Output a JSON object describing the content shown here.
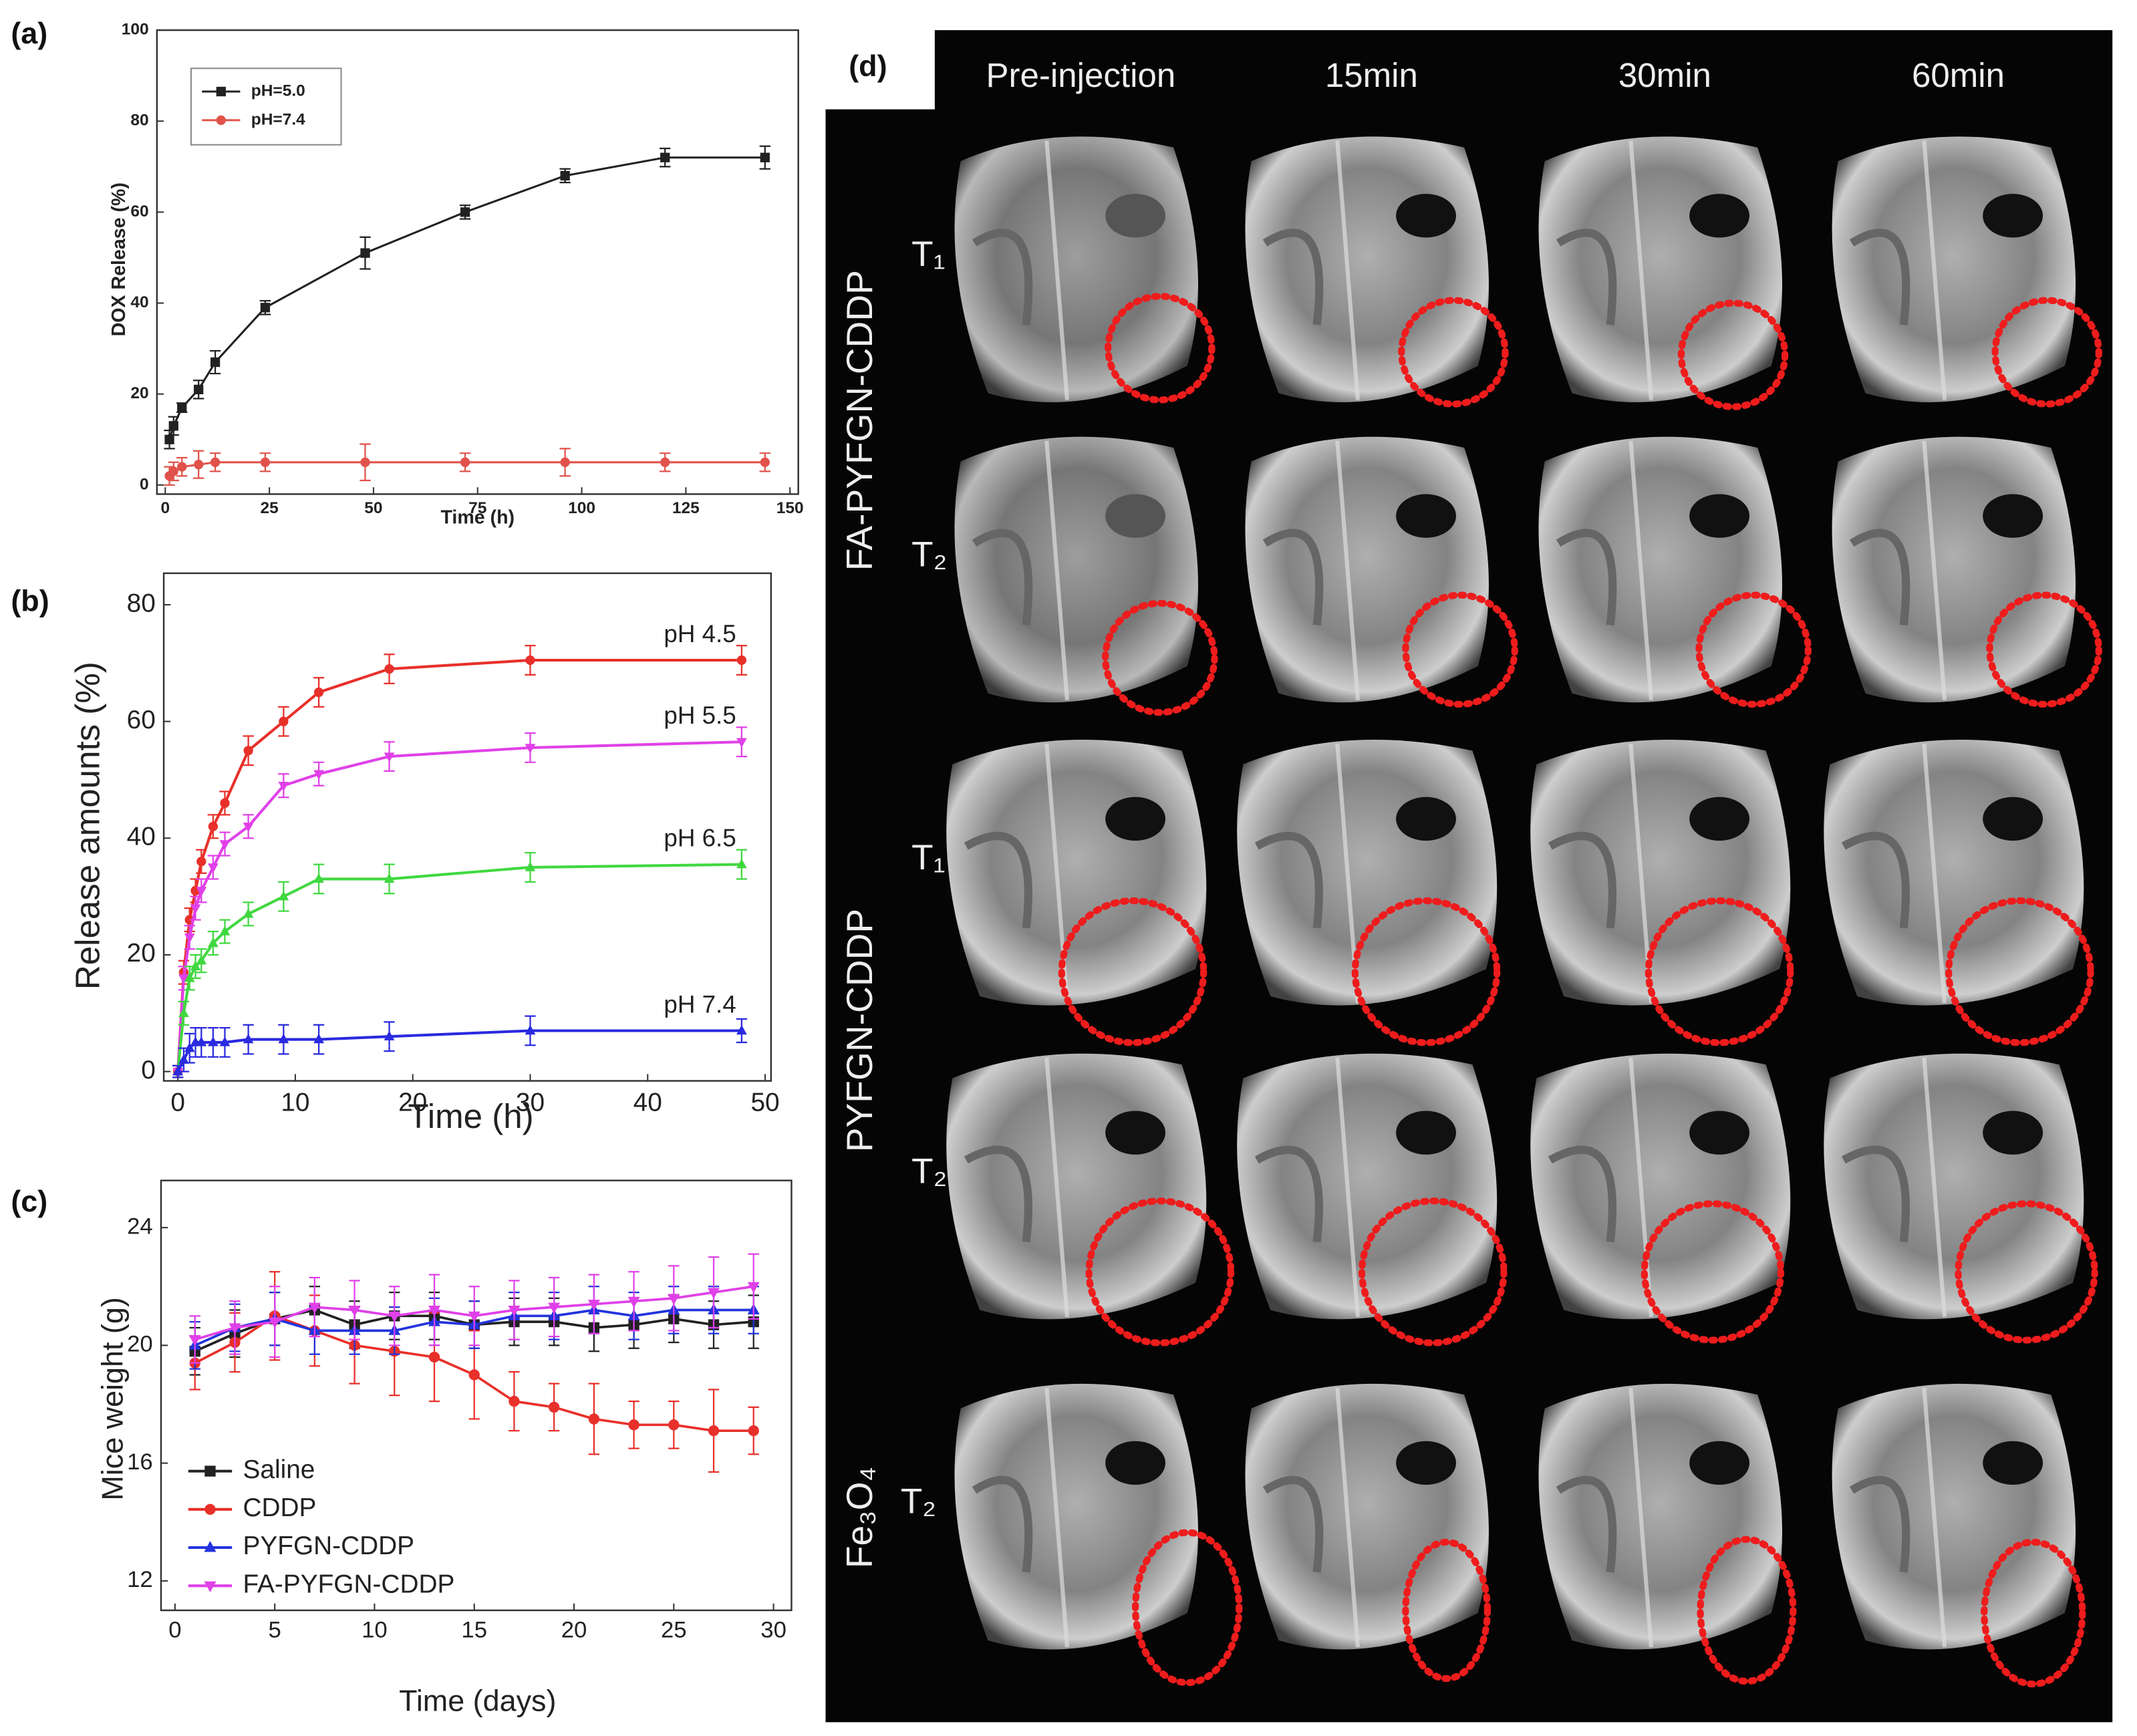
{
  "chart_data": [
    {
      "type": "line",
      "panel_label": "(a)",
      "x_label": "Time (h)",
      "y_label": "DOX Release (%)",
      "xlim": [
        -2,
        152
      ],
      "ylim": [
        -2,
        100
      ],
      "xticks": [
        0,
        25,
        50,
        75,
        100,
        125,
        150
      ],
      "yticks": [
        0,
        20,
        40,
        60,
        80,
        100
      ],
      "legend": "upper left",
      "series": [
        {
          "name": "pH=5.0",
          "color": "#222222",
          "marker": "square",
          "x": [
            1,
            2,
            4,
            8,
            12,
            24,
            48,
            72,
            96,
            120,
            144
          ],
          "values": [
            10,
            13,
            17,
            21,
            27,
            39,
            51,
            60,
            68,
            72,
            72
          ],
          "errors": [
            2,
            2,
            1,
            2,
            2.5,
            1.5,
            3.5,
            1.5,
            1.5,
            2,
            2.5
          ]
        },
        {
          "name": "pH=7.4",
          "color": "#e0524a",
          "marker": "circle",
          "x": [
            1,
            2,
            4,
            8,
            12,
            24,
            48,
            72,
            96,
            120,
            144
          ],
          "values": [
            2,
            3,
            4,
            4.5,
            5,
            5,
            5,
            5,
            5,
            5,
            5
          ],
          "errors": [
            2,
            2,
            2,
            3,
            2,
            2,
            4,
            2,
            3,
            2,
            2
          ]
        }
      ]
    },
    {
      "type": "line",
      "panel_label": "(b)",
      "x_label": "Time (h)",
      "y_label": "Release amounts (%)",
      "xlim": [
        -1.2,
        50.5
      ],
      "ylim": [
        -1.6,
        85.4
      ],
      "xticks": [
        0,
        10,
        20,
        30,
        40,
        50
      ],
      "yticks": [
        0,
        20,
        40,
        60,
        80
      ],
      "legend": "direct",
      "series": [
        {
          "name": "pH 4.5",
          "color": "#e8302a",
          "marker": "circle",
          "x": [
            0,
            0.5,
            1,
            1.5,
            2,
            3,
            4,
            6,
            9,
            12,
            18,
            30,
            48
          ],
          "values": [
            0,
            17,
            26,
            31,
            36,
            42,
            46,
            55,
            60,
            65,
            69,
            70.5,
            70.5
          ],
          "errors": [
            1,
            2,
            2,
            2,
            2,
            2,
            2,
            2.5,
            2.5,
            2.5,
            2.5,
            2.5,
            2.5
          ]
        },
        {
          "name": "pH 5.5",
          "color": "#e040e8",
          "marker": "triangle-down",
          "x": [
            0,
            0.5,
            1,
            1.5,
            2,
            3,
            4,
            6,
            9,
            12,
            18,
            30,
            48
          ],
          "values": [
            0,
            16,
            23,
            28,
            31,
            35,
            39,
            42,
            49,
            51,
            54,
            55.5,
            56.5
          ],
          "errors": [
            1,
            2,
            2,
            2,
            2,
            2,
            2,
            2,
            2,
            2,
            2.5,
            2.5,
            2.5
          ]
        },
        {
          "name": "pH 6.5",
          "color": "#40d840",
          "marker": "triangle-up",
          "x": [
            0,
            0.5,
            1,
            1.5,
            2,
            3,
            4,
            6,
            9,
            12,
            18,
            30,
            48
          ],
          "values": [
            0,
            10,
            16,
            18,
            19,
            22,
            24,
            27,
            30,
            33,
            33,
            35,
            35.5
          ],
          "errors": [
            1,
            2,
            2,
            2,
            2,
            2,
            2,
            2,
            2.5,
            2.5,
            2.5,
            2.5,
            2.5
          ]
        },
        {
          "name": "pH 7.4",
          "color": "#2a2ae0",
          "marker": "triangle-up",
          "x": [
            0,
            0.5,
            1,
            1.5,
            2,
            3,
            4,
            6,
            9,
            12,
            18,
            30,
            48
          ],
          "values": [
            0,
            2,
            4,
            5,
            5,
            5,
            5,
            5.5,
            5.5,
            5.5,
            6,
            7,
            7
          ],
          "errors": [
            1,
            2,
            2.5,
            2.5,
            2.5,
            2.5,
            2.5,
            2.5,
            2.5,
            2.5,
            2.5,
            2.5,
            2
          ]
        }
      ]
    },
    {
      "type": "line",
      "panel_label": "(c)",
      "x_label": "Time (days)",
      "y_label": "Mice weight (g)",
      "xlim": [
        -0.7,
        30.9
      ],
      "ylim": [
        11,
        25.6
      ],
      "xticks": [
        0,
        5,
        10,
        15,
        20,
        25,
        30
      ],
      "yticks": [
        12,
        16,
        20,
        24
      ],
      "legend": "lower left",
      "series": [
        {
          "name": "Saline",
          "color": "#222222",
          "marker": "square",
          "x": [
            1,
            3,
            5,
            7,
            9,
            11,
            13,
            15,
            17,
            19,
            21,
            23,
            25,
            27,
            29
          ],
          "values": [
            19.8,
            20.4,
            20.9,
            21.2,
            20.7,
            21,
            21,
            20.7,
            20.8,
            20.8,
            20.6,
            20.7,
            20.9,
            20.7,
            20.8
          ],
          "errors": [
            0.8,
            0.8,
            0.9,
            0.8,
            0.8,
            0.8,
            0.8,
            0.8,
            0.8,
            0.8,
            0.8,
            0.8,
            0.8,
            0.8,
            0.9
          ]
        },
        {
          "name": "CDDP",
          "color": "#e8302a",
          "marker": "circle",
          "x": [
            1,
            3,
            5,
            7,
            9,
            11,
            13,
            15,
            17,
            19,
            21,
            23,
            25,
            27,
            29
          ],
          "values": [
            19.4,
            20.1,
            21.0,
            20.5,
            20.0,
            19.8,
            19.6,
            19.0,
            18.1,
            17.9,
            17.5,
            17.3,
            17.3,
            17.1,
            17.1
          ],
          "errors": [
            0.9,
            1.0,
            1.5,
            1.2,
            1.3,
            1.5,
            1.5,
            1.5,
            1.0,
            0.8,
            1.2,
            0.8,
            0.8,
            1.4,
            0.8
          ]
        },
        {
          "name": "PYFGN-CDDP",
          "color": "#2233dd",
          "marker": "triangle-up",
          "x": [
            1,
            3,
            5,
            7,
            9,
            11,
            13,
            15,
            17,
            19,
            21,
            23,
            25,
            27,
            29
          ],
          "values": [
            20.0,
            20.6,
            20.9,
            20.5,
            20.5,
            20.5,
            20.8,
            20.7,
            21.0,
            21.0,
            21.2,
            21.0,
            21.2,
            21.2,
            21.2
          ],
          "errors": [
            0.8,
            0.8,
            0.9,
            0.8,
            0.8,
            0.8,
            0.8,
            0.8,
            0.8,
            0.8,
            0.8,
            0.8,
            0.8,
            0.8,
            0.8
          ]
        },
        {
          "name": "FA-PYFGN-CDDP",
          "color": "#e040e8",
          "marker": "triangle-down",
          "x": [
            1,
            3,
            5,
            7,
            9,
            11,
            13,
            15,
            17,
            19,
            21,
            23,
            25,
            27,
            29
          ],
          "values": [
            20.2,
            20.6,
            20.8,
            21.3,
            21.2,
            21.0,
            21.2,
            21.0,
            21.2,
            21.3,
            21.4,
            21.5,
            21.6,
            21.8,
            22.0
          ],
          "errors": [
            0.8,
            0.9,
            1.2,
            1.0,
            1.0,
            1.0,
            1.2,
            1.0,
            1.0,
            1.0,
            1.0,
            1.0,
            1.1,
            1.2,
            1.1
          ]
        }
      ]
    }
  ],
  "panel_d": {
    "label": "(d)",
    "columns": [
      "Pre-injection",
      "15min",
      "30min",
      "60min"
    ],
    "groups": [
      {
        "name": "FA-PYFGN-CDDP",
        "rows": [
          "T₁",
          "T₂"
        ]
      },
      {
        "name": "PYFGN-CDDP",
        "rows": [
          "T₁",
          "T₂"
        ]
      },
      {
        "name": "Fe₃O₄",
        "rows": [
          "T₂"
        ]
      }
    ]
  }
}
